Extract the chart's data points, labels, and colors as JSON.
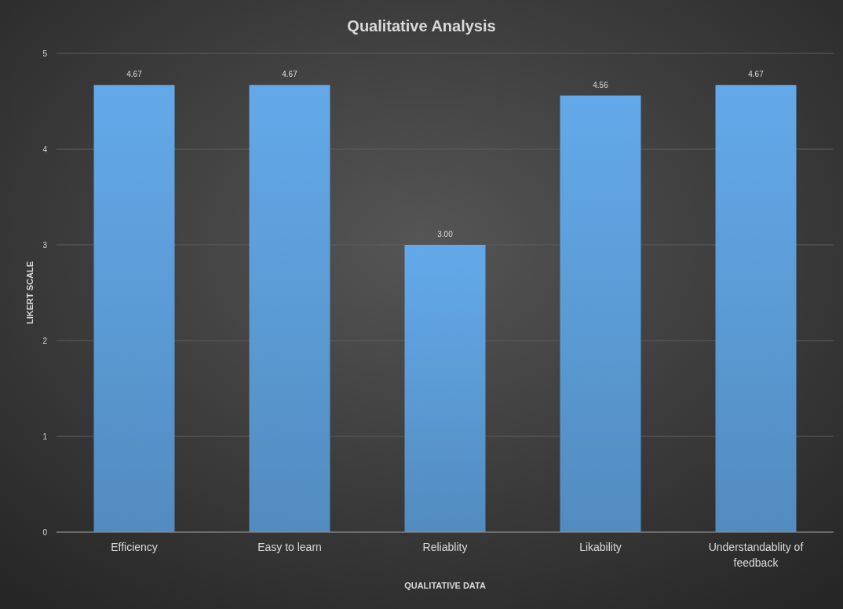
{
  "chart_data": {
    "type": "bar",
    "title": "Qualitative Analysis",
    "xlabel": "QUALITATIVE DATA",
    "ylabel": "LIKERT SCALE",
    "categories": [
      "Efficiency",
      "Easy to learn",
      "Reliablity",
      "Likability",
      "Understandablity of feedback"
    ],
    "values": [
      4.67,
      4.67,
      3.0,
      4.56,
      4.67
    ],
    "value_labels": [
      "4.67",
      "4.67",
      "3.00",
      "4.56",
      "4.67"
    ],
    "color": "#5b9bd5",
    "ylim": [
      0,
      5
    ],
    "yticks": [
      0,
      1,
      2,
      3,
      4,
      5
    ],
    "grid": "y"
  }
}
